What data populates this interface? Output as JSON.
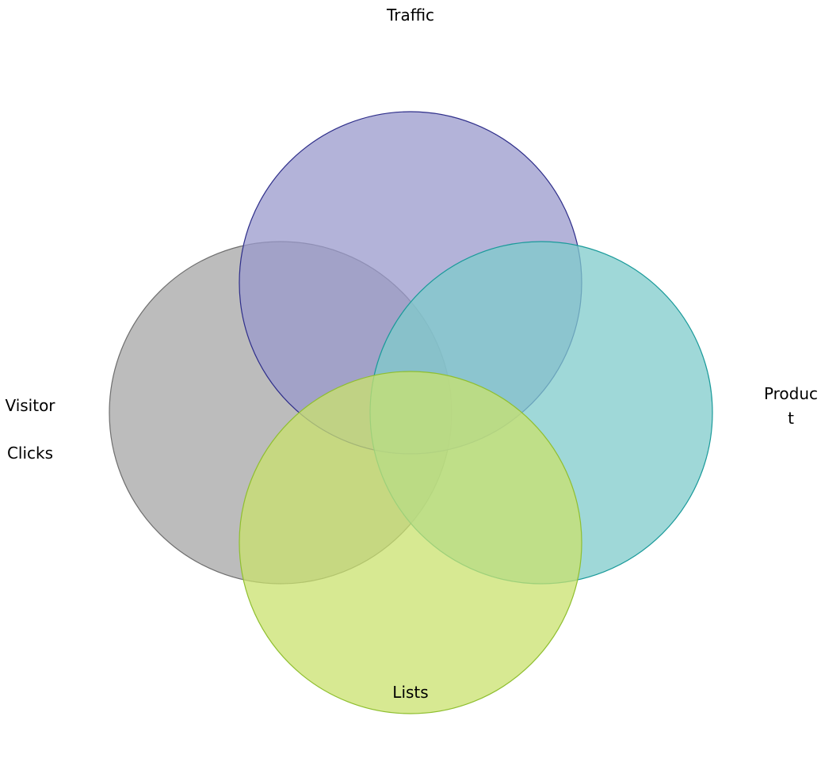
{
  "diagram": {
    "type": "venn",
    "sets": [
      {
        "id": "traffic",
        "label_lines": [
          "Traffic"
        ],
        "fill": "#9999CC",
        "stroke": "#2E2E8A"
      },
      {
        "id": "visitor-clicks",
        "label_lines": [
          "Visitor",
          "Clicks"
        ],
        "fill": "#A6A6A6",
        "stroke": "#6E6E6E"
      },
      {
        "id": "product",
        "label_lines": [
          "Produc",
          "t"
        ],
        "fill": "#7FCBCB",
        "stroke": "#1A9A9A"
      },
      {
        "id": "lists",
        "label_lines": [
          "Lists"
        ],
        "fill": "#C9E26E",
        "stroke": "#8FBF2F"
      }
    ],
    "fill_opacity": 0.75
  }
}
